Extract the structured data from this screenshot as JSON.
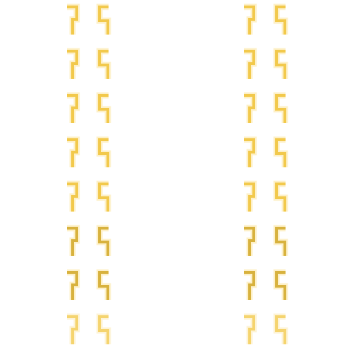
{
  "pattern": {
    "rows": 8,
    "columns": [
      {
        "group": "left",
        "glyph": "bracket-left-icon"
      },
      {
        "group": "left",
        "glyph": "bracket-right-icon"
      },
      {
        "group": "right",
        "glyph": "bracket-left-icon"
      },
      {
        "group": "right",
        "glyph": "bracket-right-icon"
      }
    ],
    "colors": {
      "background": "#ffffff",
      "glyph_main": "#f2c94c",
      "glyph_alt": "#d8b23e",
      "glow": "#fbe39a"
    }
  }
}
